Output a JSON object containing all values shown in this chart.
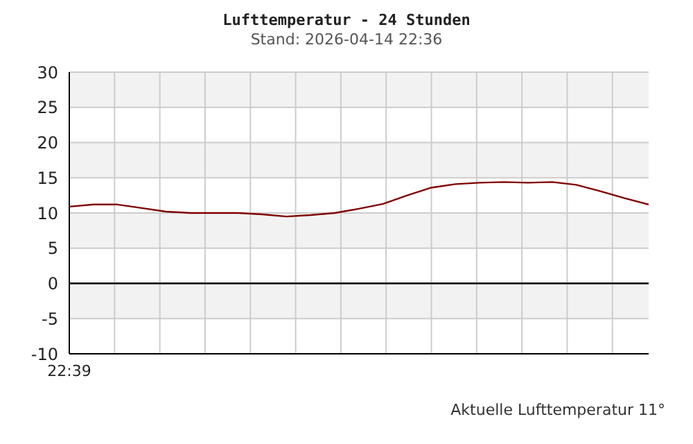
{
  "chart_data": {
    "type": "line",
    "title": "Lufttemperatur - 24 Stunden",
    "subtitle": "Stand: 2026-04-14 22:36",
    "categories": [
      "22:39",
      null,
      null,
      null,
      null,
      null,
      null,
      null,
      null,
      null,
      null,
      null,
      null,
      null,
      null,
      null,
      null,
      null,
      null,
      null,
      null,
      null,
      null,
      null,
      null
    ],
    "series": [
      {
        "color": "#800000",
        "values": [
          10.9,
          11.2,
          11.2,
          10.7,
          10.2,
          10.0,
          10.0,
          10.0,
          9.8,
          9.5,
          9.7,
          10.0,
          10.6,
          11.3,
          12.5,
          13.6,
          14.1,
          14.3,
          14.4,
          14.3,
          14.4,
          14.0,
          13.1,
          12.1,
          11.2
        ]
      }
    ],
    "ylim": [
      -10,
      30
    ],
    "yticks": [
      -10,
      -5,
      0,
      5,
      10,
      15,
      20,
      25,
      30
    ],
    "grid": true,
    "marker": "none",
    "line_style": "solid",
    "ref_lines": [
      {
        "axis": "y",
        "value": 0,
        "color": "#000000"
      }
    ],
    "annotations": [
      "Aktuelle Lufttemperatur 11°"
    ]
  }
}
